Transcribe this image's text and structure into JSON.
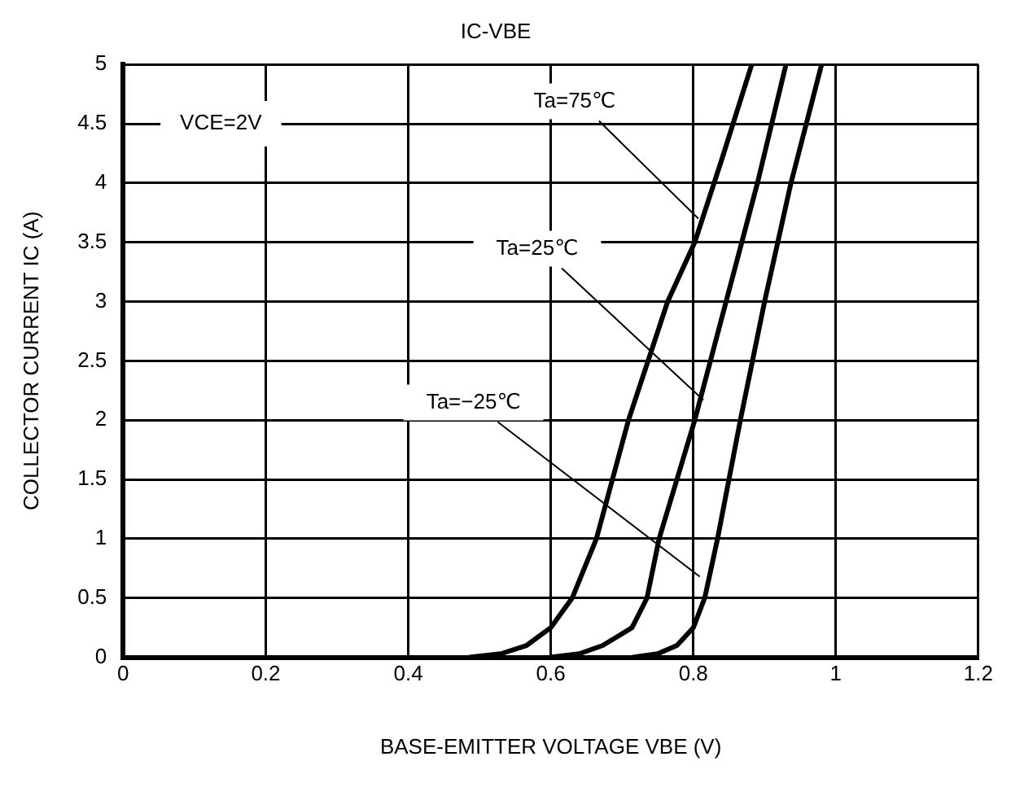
{
  "chart_data": {
    "type": "line",
    "title": "IC-VBE",
    "xlabel": "BASE-EMITTER VOLTAGE VBE (V)",
    "ylabel": "COLLECTOR CURRENT IC (A)",
    "series": [
      {
        "color": "#000000",
        "x": [
          0.486,
          0.53,
          0.566,
          0.6,
          0.63,
          0.664,
          0.709,
          0.764,
          0.802,
          0.84,
          0.882
        ],
        "values": [
          0,
          0.03,
          0.1,
          0.25,
          0.5,
          1,
          2,
          3,
          3.5,
          4.2,
          5
        ]
      },
      {
        "color": "#000000",
        "x": [
          0.6,
          0.64,
          0.673,
          0.714,
          0.735,
          0.752,
          0.802,
          0.846,
          0.89,
          0.93
        ],
        "values": [
          0,
          0.03,
          0.1,
          0.25,
          0.5,
          1,
          2,
          3,
          4,
          5
        ]
      },
      {
        "color": "#000000",
        "x": [
          0.714,
          0.75,
          0.777,
          0.8,
          0.816,
          0.834,
          0.866,
          0.9,
          0.937,
          0.98
        ],
        "values": [
          0,
          0.03,
          0.1,
          0.25,
          0.5,
          1,
          2,
          3,
          4,
          5
        ]
      }
    ],
    "annotations": [
      "VCE=2V",
      {
        "text": "Ta=75℃",
        "x": 0.807,
        "y": 3.7
      },
      {
        "text": "Ta=25℃",
        "x": 0.814,
        "y": 2.17
      },
      {
        "text": "Ta=−25℃",
        "x": 0.809,
        "y": 0.68
      }
    ],
    "xlim": [
      0,
      1.2
    ],
    "xticks": [
      0,
      0.2,
      0.4,
      0.6,
      0.8,
      1,
      1.2
    ],
    "ylim": [
      0,
      5
    ],
    "yticks": [
      0,
      0.5,
      1,
      1.5,
      2,
      2.5,
      3,
      3.5,
      4,
      4.5,
      5
    ],
    "grid": true,
    "legend": false,
    "marker": "none",
    "line_style": "solid"
  }
}
